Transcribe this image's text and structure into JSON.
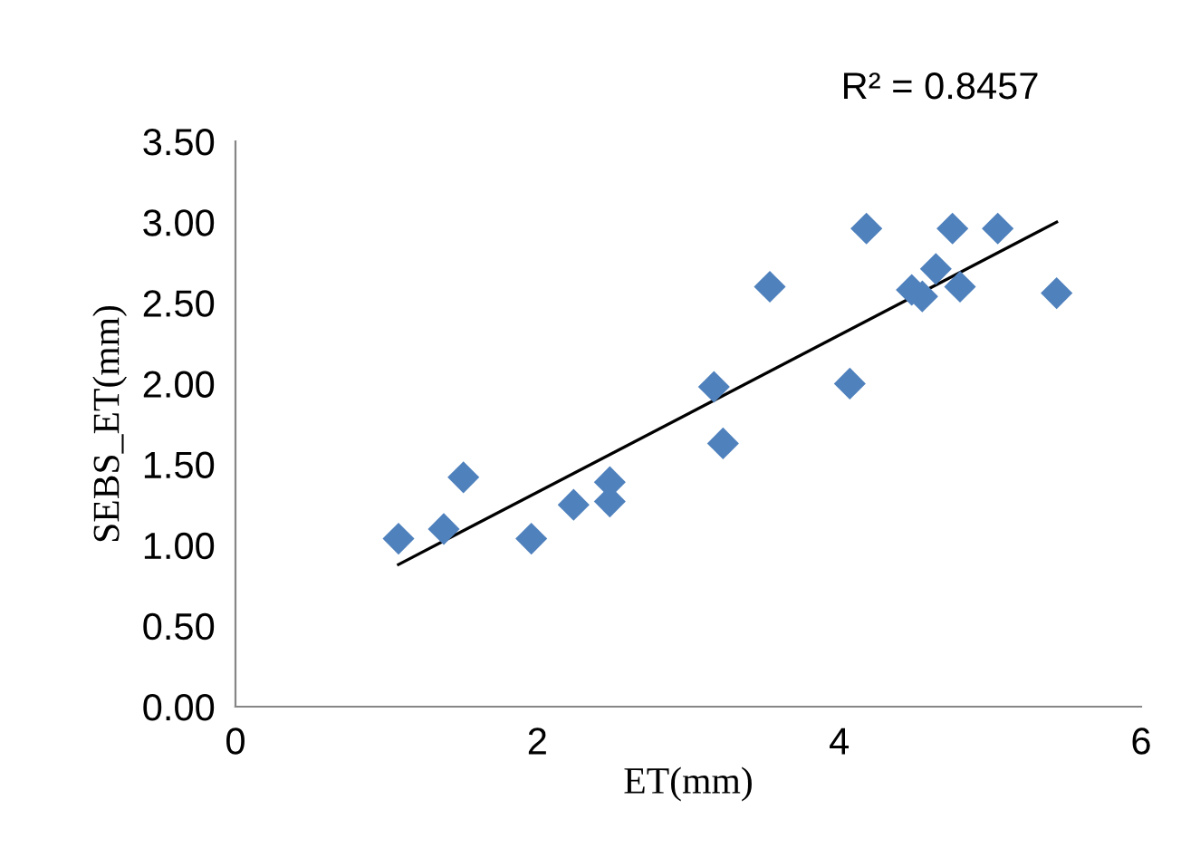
{
  "chart_data": {
    "type": "scatter",
    "xlabel": "ET(mm)",
    "ylabel": "SEBS_ET(mm)",
    "annotations": [
      "R² = 0.8457"
    ],
    "xlim": [
      0,
      6
    ],
    "xticks": [
      0,
      2,
      4,
      6
    ],
    "ylim": [
      0,
      3.5
    ],
    "yticks": [
      {
        "value": 0,
        "label": "0.00"
      },
      {
        "value": 0.5,
        "label": "0.50"
      },
      {
        "value": 1,
        "label": "1.00"
      },
      {
        "value": 1.5,
        "label": "1.50"
      },
      {
        "value": 2,
        "label": "2.00"
      },
      {
        "value": 2.5,
        "label": "2.50"
      },
      {
        "value": 3,
        "label": "3.00"
      },
      {
        "value": 3.5,
        "label": "3.50"
      }
    ],
    "grid": false,
    "legend": false,
    "marker": "diamond",
    "series": [
      {
        "color": "#4f81bd",
        "x": [
          1.08,
          1.38,
          1.51,
          1.96,
          2.24,
          2.48,
          2.48,
          3.17,
          3.23,
          3.54,
          4.07,
          4.18,
          4.48,
          4.55,
          4.64,
          4.75,
          4.8,
          5.05,
          5.44
        ],
        "values": [
          1.04,
          1.1,
          1.42,
          1.04,
          1.25,
          1.39,
          1.27,
          1.98,
          1.63,
          2.6,
          2.0,
          2.96,
          2.58,
          2.54,
          2.71,
          2.96,
          2.6,
          2.96,
          2.56
        ]
      },
      {
        "type": "line",
        "color": "#000000",
        "marker": "none",
        "line_style": "solid",
        "x": [
          1.08,
          5.44
        ],
        "values": [
          0.88,
          3.0
        ]
      }
    ]
  }
}
